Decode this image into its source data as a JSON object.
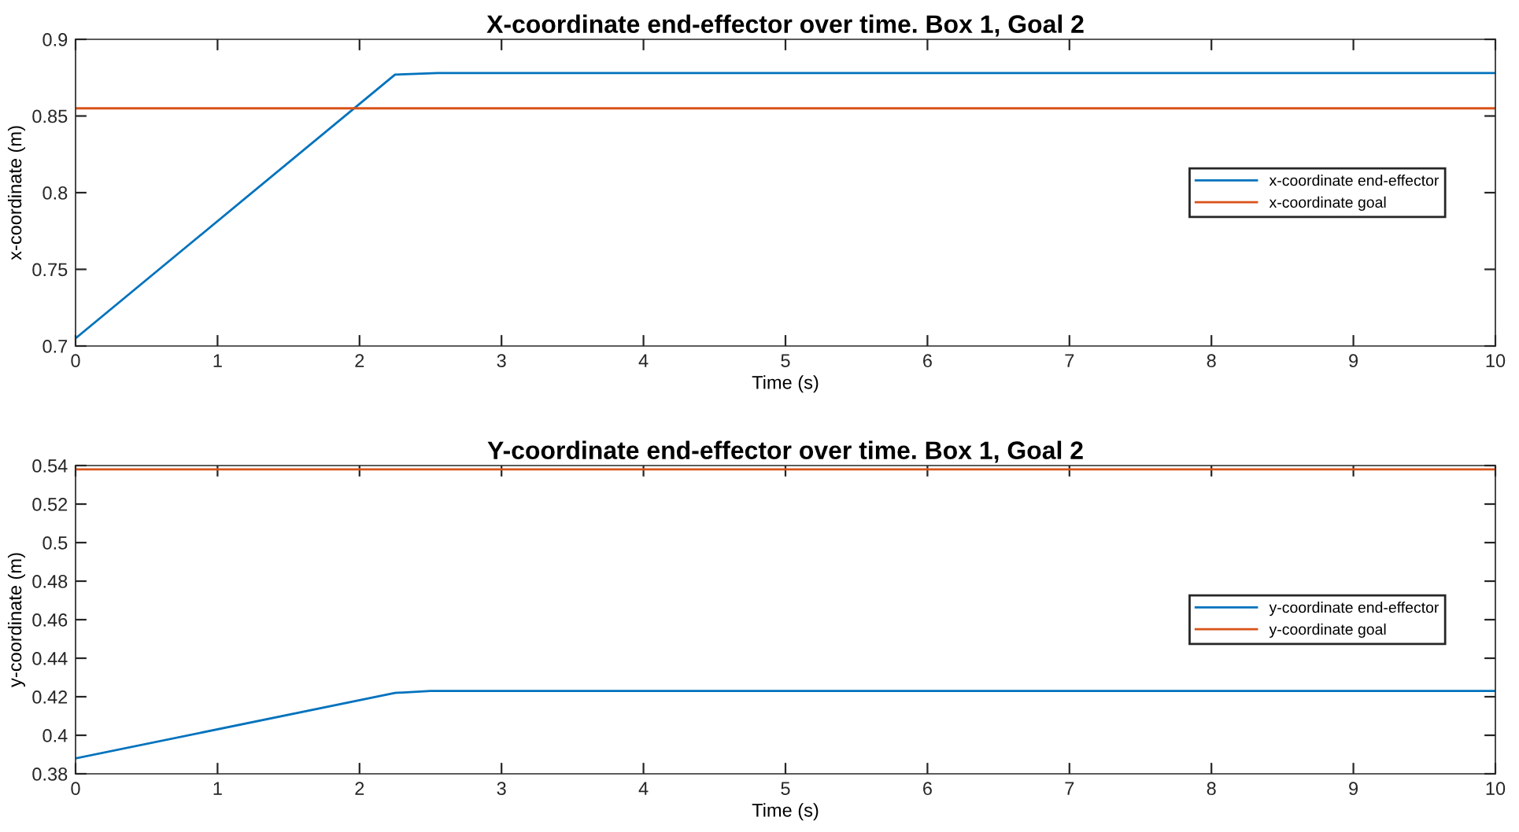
{
  "chart_data": [
    {
      "type": "line",
      "title": "X-coordinate end-effector over time. Box 1, Goal 2",
      "xlabel": "Time (s)",
      "ylabel": "x-coordinate (m)",
      "xlim": [
        0,
        10
      ],
      "ylim": [
        0.7,
        0.9
      ],
      "xticks": [
        0,
        1,
        2,
        3,
        4,
        5,
        6,
        7,
        8,
        9,
        10
      ],
      "yticks": [
        0.7,
        0.75,
        0.8,
        0.85,
        0.9
      ],
      "legend": "right",
      "grid": false,
      "series": [
        {
          "name": "x-coordinate end-effector",
          "color": "#0072bd",
          "x": [
            0,
            2.25,
            2.55,
            10
          ],
          "values": [
            0.705,
            0.877,
            0.878,
            0.878
          ]
        },
        {
          "name": "x-coordinate goal",
          "color": "#d95319",
          "x": [
            0,
            10
          ],
          "values": [
            0.855,
            0.855
          ]
        }
      ]
    },
    {
      "type": "line",
      "title": "Y-coordinate end-effector over time. Box 1, Goal 2",
      "xlabel": "Time (s)",
      "ylabel": "y-coordinate (m)",
      "xlim": [
        0,
        10
      ],
      "ylim": [
        0.38,
        0.54
      ],
      "xticks": [
        0,
        1,
        2,
        3,
        4,
        5,
        6,
        7,
        8,
        9,
        10
      ],
      "yticks": [
        0.38,
        0.4,
        0.42,
        0.44,
        0.46,
        0.48,
        0.5,
        0.52,
        0.54
      ],
      "legend": "right",
      "grid": false,
      "series": [
        {
          "name": "y-coordinate end-effector",
          "color": "#0072bd",
          "x": [
            0,
            2.25,
            2.5,
            10
          ],
          "values": [
            0.388,
            0.422,
            0.423,
            0.423
          ]
        },
        {
          "name": "y-coordinate goal",
          "color": "#d95319",
          "x": [
            0,
            10
          ],
          "values": [
            0.538,
            0.538
          ]
        }
      ]
    }
  ]
}
